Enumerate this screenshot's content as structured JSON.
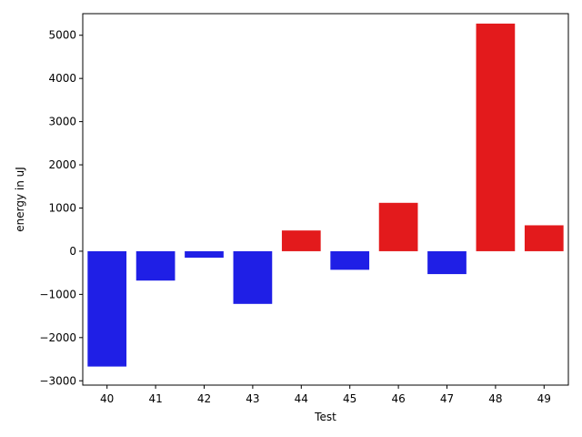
{
  "chart_data": {
    "type": "bar",
    "title": "",
    "xlabel": "Test",
    "ylabel": "energy in uJ",
    "categories": [
      "40",
      "41",
      "42",
      "43",
      "44",
      "45",
      "46",
      "47",
      "48",
      "49"
    ],
    "values": [
      -2670,
      -680,
      -150,
      -1220,
      480,
      -430,
      1120,
      -530,
      5270,
      600
    ],
    "ylim": [
      -3100,
      5500
    ],
    "yticks": [
      -3000,
      -2000,
      -1000,
      0,
      1000,
      2000,
      3000,
      4000,
      5000
    ],
    "grid": false,
    "colors": {
      "positive": "#e31a1c",
      "negative": "#1f1fe6"
    }
  }
}
